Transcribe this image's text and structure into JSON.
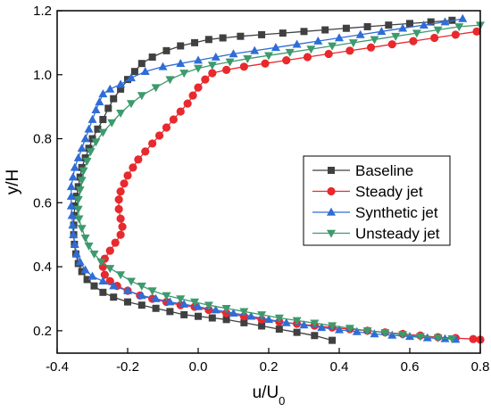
{
  "chart_data": {
    "type": "line",
    "xlabel": "u/U",
    "xlabel_sub": "0",
    "ylabel": "y/H",
    "xlim": [
      -0.4,
      0.8
    ],
    "ylim": [
      0.13,
      1.2
    ],
    "x_ticks": [
      "-0.4",
      "-0.2",
      "0.0",
      "0.2",
      "0.4",
      "0.6",
      "0.8"
    ],
    "y_ticks": [
      "0.2",
      "0.4",
      "0.6",
      "0.8",
      "1.0",
      "1.2"
    ],
    "legend_position": "center-right",
    "series": [
      {
        "name": "Baseline",
        "color": "#404040",
        "marker": "square",
        "points": [
          [
            0.72,
            1.17
          ],
          [
            0.66,
            1.165
          ],
          [
            0.6,
            1.16
          ],
          [
            0.54,
            1.155
          ],
          [
            0.48,
            1.15
          ],
          [
            0.42,
            1.145
          ],
          [
            0.36,
            1.14
          ],
          [
            0.3,
            1.135
          ],
          [
            0.24,
            1.13
          ],
          [
            0.18,
            1.125
          ],
          [
            0.12,
            1.12
          ],
          [
            0.07,
            1.115
          ],
          [
            0.03,
            1.11
          ],
          [
            -0.01,
            1.1
          ],
          [
            -0.05,
            1.09
          ],
          [
            -0.09,
            1.075
          ],
          [
            -0.13,
            1.055
          ],
          [
            -0.16,
            1.035
          ],
          [
            -0.18,
            1.01
          ],
          [
            -0.2,
            0.985
          ],
          [
            -0.22,
            0.955
          ],
          [
            -0.24,
            0.925
          ],
          [
            -0.255,
            0.895
          ],
          [
            -0.27,
            0.86
          ],
          [
            -0.285,
            0.83
          ],
          [
            -0.3,
            0.8
          ],
          [
            -0.31,
            0.77
          ],
          [
            -0.32,
            0.74
          ],
          [
            -0.33,
            0.71
          ],
          [
            -0.335,
            0.68
          ],
          [
            -0.34,
            0.65
          ],
          [
            -0.345,
            0.62
          ],
          [
            -0.35,
            0.59
          ],
          [
            -0.352,
            0.56
          ],
          [
            -0.353,
            0.53
          ],
          [
            -0.353,
            0.5
          ],
          [
            -0.351,
            0.47
          ],
          [
            -0.347,
            0.44
          ],
          [
            -0.34,
            0.41
          ],
          [
            -0.33,
            0.385
          ],
          [
            -0.315,
            0.36
          ],
          [
            -0.295,
            0.34
          ],
          [
            -0.27,
            0.32
          ],
          [
            -0.24,
            0.305
          ],
          [
            -0.2,
            0.29
          ],
          [
            -0.16,
            0.28
          ],
          [
            -0.12,
            0.27
          ],
          [
            -0.08,
            0.26
          ],
          [
            -0.04,
            0.25
          ],
          [
            0.0,
            0.245
          ],
          [
            0.04,
            0.24
          ],
          [
            0.08,
            0.235
          ],
          [
            0.13,
            0.225
          ],
          [
            0.18,
            0.215
          ],
          [
            0.23,
            0.205
          ],
          [
            0.28,
            0.195
          ],
          [
            0.33,
            0.185
          ],
          [
            0.38,
            0.17
          ]
        ]
      },
      {
        "name": "Steady jet",
        "color": "#e8292d",
        "marker": "circle",
        "points": [
          [
            0.79,
            1.135
          ],
          [
            0.73,
            1.125
          ],
          [
            0.67,
            1.115
          ],
          [
            0.61,
            1.105
          ],
          [
            0.55,
            1.095
          ],
          [
            0.49,
            1.085
          ],
          [
            0.43,
            1.075
          ],
          [
            0.37,
            1.065
          ],
          [
            0.31,
            1.055
          ],
          [
            0.25,
            1.045
          ],
          [
            0.19,
            1.035
          ],
          [
            0.13,
            1.025
          ],
          [
            0.08,
            1.015
          ],
          [
            0.04,
            1.005
          ],
          [
            0.02,
            0.985
          ],
          [
            0.0,
            0.96
          ],
          [
            -0.015,
            0.935
          ],
          [
            -0.03,
            0.91
          ],
          [
            -0.05,
            0.885
          ],
          [
            -0.07,
            0.86
          ],
          [
            -0.09,
            0.835
          ],
          [
            -0.11,
            0.81
          ],
          [
            -0.13,
            0.785
          ],
          [
            -0.15,
            0.76
          ],
          [
            -0.17,
            0.735
          ],
          [
            -0.185,
            0.71
          ],
          [
            -0.2,
            0.685
          ],
          [
            -0.21,
            0.66
          ],
          [
            -0.22,
            0.635
          ],
          [
            -0.225,
            0.61
          ],
          [
            -0.225,
            0.58
          ],
          [
            -0.22,
            0.55
          ],
          [
            -0.215,
            0.525
          ],
          [
            -0.22,
            0.5
          ],
          [
            -0.235,
            0.475
          ],
          [
            -0.25,
            0.45
          ],
          [
            -0.265,
            0.425
          ],
          [
            -0.27,
            0.4
          ],
          [
            -0.265,
            0.375
          ],
          [
            -0.25,
            0.355
          ],
          [
            -0.23,
            0.34
          ],
          [
            -0.2,
            0.325
          ],
          [
            -0.165,
            0.31
          ],
          [
            -0.13,
            0.3
          ],
          [
            -0.09,
            0.29
          ],
          [
            -0.05,
            0.28
          ],
          [
            -0.01,
            0.275
          ],
          [
            0.03,
            0.265
          ],
          [
            0.08,
            0.255
          ],
          [
            0.13,
            0.245
          ],
          [
            0.18,
            0.235
          ],
          [
            0.23,
            0.228
          ],
          [
            0.28,
            0.222
          ],
          [
            0.33,
            0.216
          ],
          [
            0.38,
            0.21
          ],
          [
            0.43,
            0.205
          ],
          [
            0.48,
            0.2
          ],
          [
            0.53,
            0.195
          ],
          [
            0.58,
            0.19
          ],
          [
            0.63,
            0.185
          ],
          [
            0.68,
            0.18
          ],
          [
            0.73,
            0.177
          ],
          [
            0.78,
            0.174
          ],
          [
            0.8,
            0.172
          ]
        ]
      },
      {
        "name": "Synthetic jet",
        "color": "#2f6dd6",
        "marker": "triangle-up",
        "points": [
          [
            0.75,
            1.175
          ],
          [
            0.7,
            1.165
          ],
          [
            0.64,
            1.155
          ],
          [
            0.58,
            1.145
          ],
          [
            0.52,
            1.135
          ],
          [
            0.46,
            1.125
          ],
          [
            0.4,
            1.115
          ],
          [
            0.34,
            1.105
          ],
          [
            0.28,
            1.095
          ],
          [
            0.22,
            1.085
          ],
          [
            0.16,
            1.075
          ],
          [
            0.1,
            1.065
          ],
          [
            0.05,
            1.055
          ],
          [
            0.0,
            1.045
          ],
          [
            -0.05,
            1.035
          ],
          [
            -0.1,
            1.025
          ],
          [
            -0.15,
            1.01
          ],
          [
            -0.19,
            0.99
          ],
          [
            -0.22,
            0.97
          ],
          [
            -0.25,
            0.955
          ],
          [
            -0.27,
            0.94
          ],
          [
            -0.28,
            0.915
          ],
          [
            -0.29,
            0.89
          ],
          [
            -0.3,
            0.86
          ],
          [
            -0.31,
            0.83
          ],
          [
            -0.32,
            0.8
          ],
          [
            -0.33,
            0.77
          ],
          [
            -0.34,
            0.74
          ],
          [
            -0.35,
            0.71
          ],
          [
            -0.355,
            0.68
          ],
          [
            -0.36,
            0.65
          ],
          [
            -0.36,
            0.62
          ],
          [
            -0.36,
            0.59
          ],
          [
            -0.358,
            0.56
          ],
          [
            -0.356,
            0.53
          ],
          [
            -0.354,
            0.5
          ],
          [
            -0.35,
            0.47
          ],
          [
            -0.345,
            0.44
          ],
          [
            -0.335,
            0.415
          ],
          [
            -0.32,
            0.39
          ],
          [
            -0.3,
            0.37
          ],
          [
            -0.27,
            0.355
          ],
          [
            -0.24,
            0.34
          ],
          [
            -0.2,
            0.325
          ],
          [
            -0.16,
            0.31
          ],
          [
            -0.12,
            0.3
          ],
          [
            -0.08,
            0.29
          ],
          [
            -0.04,
            0.283
          ],
          [
            0.0,
            0.275
          ],
          [
            0.05,
            0.265
          ],
          [
            0.1,
            0.255
          ],
          [
            0.15,
            0.245
          ],
          [
            0.2,
            0.235
          ],
          [
            0.25,
            0.225
          ],
          [
            0.3,
            0.218
          ],
          [
            0.35,
            0.21
          ],
          [
            0.4,
            0.203
          ],
          [
            0.45,
            0.197
          ],
          [
            0.5,
            0.19
          ],
          [
            0.55,
            0.186
          ],
          [
            0.6,
            0.182
          ],
          [
            0.65,
            0.178
          ],
          [
            0.7,
            0.175
          ],
          [
            0.73,
            0.173
          ]
        ]
      },
      {
        "name": "Unsteady jet",
        "color": "#3d9a6e",
        "marker": "triangle-down",
        "points": [
          [
            0.8,
            1.155
          ],
          [
            0.74,
            1.15
          ],
          [
            0.68,
            1.14
          ],
          [
            0.62,
            1.13
          ],
          [
            0.56,
            1.12
          ],
          [
            0.5,
            1.11
          ],
          [
            0.44,
            1.1
          ],
          [
            0.38,
            1.09
          ],
          [
            0.32,
            1.08
          ],
          [
            0.26,
            1.07
          ],
          [
            0.2,
            1.06
          ],
          [
            0.14,
            1.05
          ],
          [
            0.09,
            1.04
          ],
          [
            0.04,
            1.03
          ],
          [
            0.0,
            1.02
          ],
          [
            -0.04,
            1.005
          ],
          [
            -0.08,
            0.985
          ],
          [
            -0.12,
            0.96
          ],
          [
            -0.16,
            0.935
          ],
          [
            -0.19,
            0.91
          ],
          [
            -0.22,
            0.88
          ],
          [
            -0.245,
            0.85
          ],
          [
            -0.27,
            0.82
          ],
          [
            -0.29,
            0.79
          ],
          [
            -0.305,
            0.76
          ],
          [
            -0.315,
            0.73
          ],
          [
            -0.325,
            0.7
          ],
          [
            -0.33,
            0.67
          ],
          [
            -0.335,
            0.64
          ],
          [
            -0.34,
            0.61
          ],
          [
            -0.34,
            0.58
          ],
          [
            -0.338,
            0.55
          ],
          [
            -0.33,
            0.52
          ],
          [
            -0.32,
            0.49
          ],
          [
            -0.31,
            0.465
          ],
          [
            -0.295,
            0.44
          ],
          [
            -0.275,
            0.415
          ],
          [
            -0.25,
            0.395
          ],
          [
            -0.22,
            0.375
          ],
          [
            -0.19,
            0.355
          ],
          [
            -0.16,
            0.34
          ],
          [
            -0.13,
            0.325
          ],
          [
            -0.09,
            0.31
          ],
          [
            -0.05,
            0.3
          ],
          [
            -0.01,
            0.29
          ],
          [
            0.03,
            0.28
          ],
          [
            0.08,
            0.27
          ],
          [
            0.13,
            0.26
          ],
          [
            0.18,
            0.25
          ],
          [
            0.23,
            0.24
          ],
          [
            0.28,
            0.232
          ],
          [
            0.33,
            0.224
          ],
          [
            0.38,
            0.216
          ],
          [
            0.43,
            0.208
          ],
          [
            0.48,
            0.2
          ],
          [
            0.53,
            0.194
          ],
          [
            0.58,
            0.188
          ],
          [
            0.63,
            0.182
          ],
          [
            0.68,
            0.178
          ],
          [
            0.72,
            0.175
          ]
        ]
      }
    ]
  }
}
